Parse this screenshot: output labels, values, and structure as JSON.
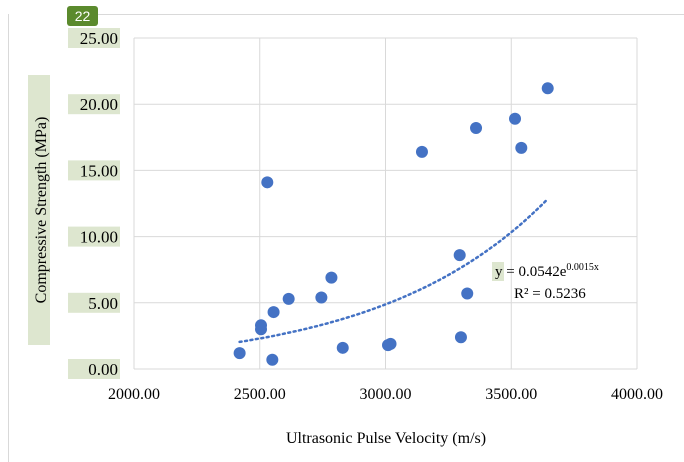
{
  "page_badge": "22",
  "colors": {
    "marker": "#4472c4",
    "trendline": "#4472c4",
    "gridline": "#d9d9d9",
    "highlight": "#dde6cf",
    "badge": "#5b8a2d"
  },
  "chart_data": {
    "type": "scatter",
    "title": "",
    "xlabel": "Ultrasonic Pulse Velocity (m/s)",
    "ylabel": "Compressive Strength (MPa)",
    "xlim": [
      2000,
      4000
    ],
    "ylim": [
      0,
      25
    ],
    "x_ticks": [
      "2000.00",
      "2500.00",
      "3000.00",
      "3500.00",
      "4000.00"
    ],
    "y_ticks": [
      "0.00",
      "5.00",
      "10.00",
      "15.00",
      "20.00",
      "25.00"
    ],
    "y_tick_values": [
      0,
      5,
      10,
      15,
      20,
      25
    ],
    "x_tick_values": [
      2000,
      2500,
      3000,
      3500,
      4000
    ],
    "grid": true,
    "legend": "none",
    "points": [
      {
        "x": 2420,
        "y": 1.2
      },
      {
        "x": 2505,
        "y": 3.0
      },
      {
        "x": 2505,
        "y": 3.3
      },
      {
        "x": 2530,
        "y": 14.1
      },
      {
        "x": 2550,
        "y": 0.7
      },
      {
        "x": 2555,
        "y": 4.3
      },
      {
        "x": 2615,
        "y": 5.3
      },
      {
        "x": 2745,
        "y": 5.4
      },
      {
        "x": 2785,
        "y": 6.9
      },
      {
        "x": 2830,
        "y": 1.6
      },
      {
        "x": 3010,
        "y": 1.8
      },
      {
        "x": 3020,
        "y": 1.9
      },
      {
        "x": 3145,
        "y": 16.4
      },
      {
        "x": 3295,
        "y": 8.6
      },
      {
        "x": 3300,
        "y": 2.4
      },
      {
        "x": 3325,
        "y": 5.7
      },
      {
        "x": 3360,
        "y": 18.2
      },
      {
        "x": 3515,
        "y": 18.9
      },
      {
        "x": 3540,
        "y": 16.7
      },
      {
        "x": 3645,
        "y": 21.2
      }
    ],
    "trendline": {
      "type": "exponential",
      "a": 0.0542,
      "b": 0.0015,
      "x_range": [
        2420,
        3645
      ],
      "equation_prefix": "y = 0.0542e",
      "equation_exponent": "0.0015x",
      "r_squared": "R² = 0.5236"
    }
  }
}
